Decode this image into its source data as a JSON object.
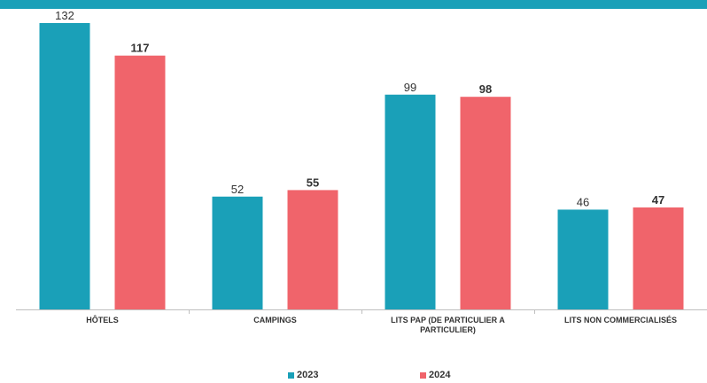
{
  "chart_data": {
    "type": "bar",
    "categories": [
      [
        "HÔTELS"
      ],
      [
        "CAMPINGS"
      ],
      [
        "LITS PAP (DE PARTICULIER A",
        "PARTICULIER)"
      ],
      [
        "LITS NON COMMERCIALISÉS"
      ]
    ],
    "series": [
      {
        "name": "2023",
        "values": [
          132,
          52,
          99,
          46
        ],
        "color": "#1aa0b8",
        "label_bold": false
      },
      {
        "name": "2024",
        "values": [
          117,
          55,
          98,
          47
        ],
        "color": "#f0646b",
        "label_bold": true
      }
    ],
    "ylim": [
      0,
      132
    ],
    "grid": false,
    "legend_position": "bottom"
  }
}
